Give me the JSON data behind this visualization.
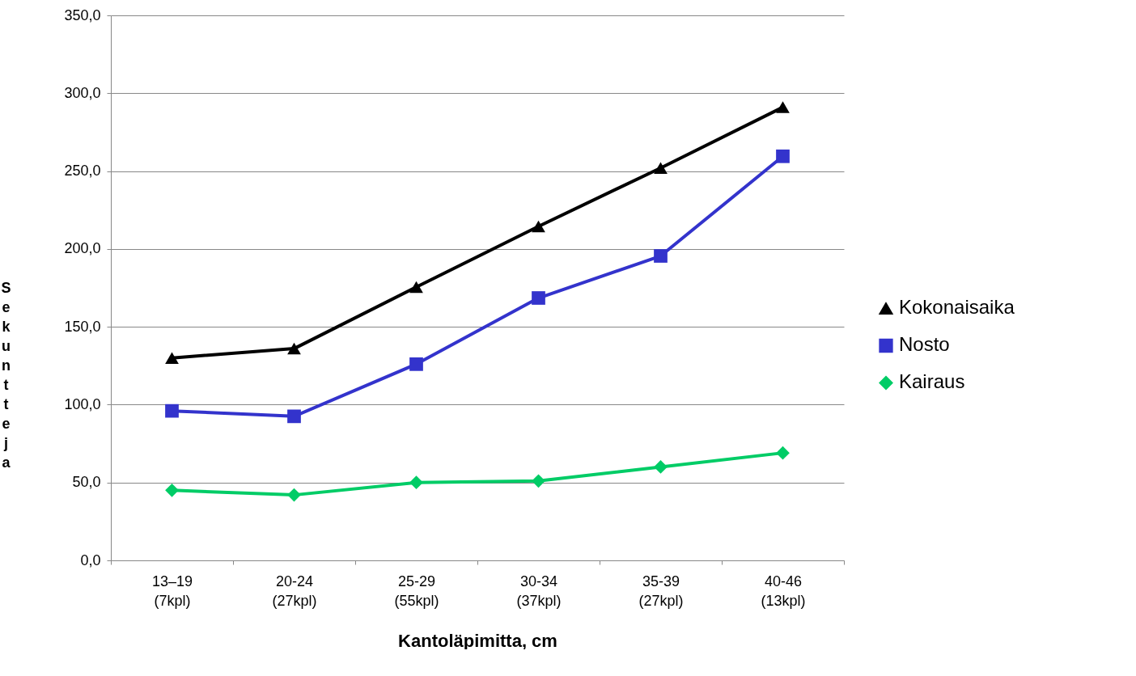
{
  "chart_data": {
    "type": "line",
    "xlabel": "Kantoläpimitta, cm",
    "ylabel": "Sekuntteja",
    "categories": [
      "13–19 (7kpl)",
      "20-24 (27kpl)",
      "25-29 (55kpl)",
      "30-34 (37kpl)",
      "35-39 (27kpl)",
      "40-46 (13kpl)"
    ],
    "series": [
      {
        "name": "Kokonaisaika",
        "color": "#000000",
        "marker": "triangle",
        "values": [
          130,
          136,
          175.5,
          214.5,
          252,
          291
        ]
      },
      {
        "name": "Nosto",
        "color": "#3333cc",
        "marker": "square",
        "values": [
          96,
          92.5,
          126,
          168.5,
          195.5,
          259.5
        ]
      },
      {
        "name": "Kairaus",
        "color": "#00cc66",
        "marker": "diamond",
        "values": [
          45,
          42,
          50,
          51,
          60,
          69
        ]
      }
    ],
    "ylim": [
      0,
      350
    ],
    "yticks": [
      {
        "value": 0,
        "label": "0,0"
      },
      {
        "value": 50,
        "label": "50,0"
      },
      {
        "value": 100,
        "label": "100,0"
      },
      {
        "value": 150,
        "label": "150,0"
      },
      {
        "value": 200,
        "label": "200,0"
      },
      {
        "value": 250,
        "label": "250,0"
      },
      {
        "value": 300,
        "label": "300,0"
      },
      {
        "value": 350,
        "label": "350,0"
      }
    ],
    "grid": "y",
    "legend": "right",
    "line_style": "solid"
  }
}
